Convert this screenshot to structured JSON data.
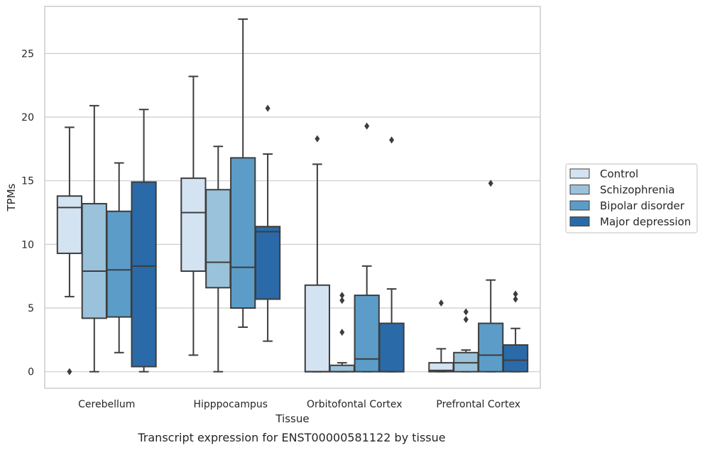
{
  "chart_data": {
    "type": "box",
    "title": "",
    "caption": "Transcript expression for ENST00000581122 by tissue",
    "xlabel": "Tissue",
    "ylabel": "TPMs",
    "ylim": [
      -1.3,
      28.7
    ],
    "yticks": [
      0,
      5,
      10,
      15,
      20,
      25
    ],
    "grid": true,
    "legend_position": "right",
    "categories": [
      "Cerebellum",
      "Hipppocampus",
      "Orbitofontal Cortex",
      "Prefrontal Cortex"
    ],
    "series": [
      {
        "name": "Control",
        "color": "#d4e3f2",
        "boxes": [
          {
            "whislo": 5.9,
            "q1": 9.3,
            "med": 12.9,
            "q3": 13.8,
            "whishi": 19.2,
            "fliers": [
              0.0
            ]
          },
          {
            "whislo": 1.3,
            "q1": 7.9,
            "med": 12.5,
            "q3": 15.2,
            "whishi": 23.2,
            "fliers": []
          },
          {
            "whislo": 0.0,
            "q1": 0.0,
            "med": 0.0,
            "q3": 6.8,
            "whishi": 16.3,
            "fliers": [
              18.3
            ]
          },
          {
            "whislo": 0.0,
            "q1": 0.0,
            "med": 0.1,
            "q3": 0.7,
            "whishi": 1.8,
            "fliers": [
              5.4
            ]
          }
        ]
      },
      {
        "name": "Schizophrenia",
        "color": "#9ac2da",
        "boxes": [
          {
            "whislo": 0.0,
            "q1": 4.2,
            "med": 7.9,
            "q3": 13.2,
            "whishi": 20.9,
            "fliers": []
          },
          {
            "whislo": 0.0,
            "q1": 6.6,
            "med": 8.6,
            "q3": 14.3,
            "whishi": 17.7,
            "fliers": []
          },
          {
            "whislo": 0.0,
            "q1": 0.0,
            "med": 0.0,
            "q3": 0.5,
            "whishi": 0.7,
            "fliers": [
              3.1,
              5.6,
              6.0
            ]
          },
          {
            "whislo": 0.0,
            "q1": 0.0,
            "med": 0.7,
            "q3": 1.5,
            "whishi": 1.7,
            "fliers": [
              4.1,
              4.7
            ]
          }
        ]
      },
      {
        "name": "Bipolar disorder",
        "color": "#5b9dc8",
        "boxes": [
          {
            "whislo": 1.5,
            "q1": 4.3,
            "med": 8.0,
            "q3": 12.6,
            "whishi": 16.4,
            "fliers": []
          },
          {
            "whislo": 3.5,
            "q1": 5.0,
            "med": 8.2,
            "q3": 16.8,
            "whishi": 27.7,
            "fliers": []
          },
          {
            "whislo": 0.0,
            "q1": 0.0,
            "med": 1.0,
            "q3": 6.0,
            "whishi": 8.3,
            "fliers": [
              19.3
            ]
          },
          {
            "whislo": 0.0,
            "q1": 0.0,
            "med": 1.3,
            "q3": 3.8,
            "whishi": 7.2,
            "fliers": [
              14.8
            ]
          }
        ]
      },
      {
        "name": "Major depression",
        "color": "#2b6aa8",
        "boxes": [
          {
            "whislo": 0.0,
            "q1": 0.4,
            "med": 8.3,
            "q3": 14.9,
            "whishi": 20.6,
            "fliers": []
          },
          {
            "whislo": 2.4,
            "q1": 5.7,
            "med": 11.0,
            "q3": 11.4,
            "whishi": 17.1,
            "fliers": [
              20.7
            ]
          },
          {
            "whislo": 0.0,
            "q1": 0.0,
            "med": 0.0,
            "q3": 3.8,
            "whishi": 6.5,
            "fliers": [
              18.2
            ]
          },
          {
            "whislo": 0.0,
            "q1": 0.0,
            "med": 0.9,
            "q3": 2.1,
            "whishi": 3.4,
            "fliers": [
              5.7,
              6.1
            ]
          }
        ]
      }
    ]
  }
}
